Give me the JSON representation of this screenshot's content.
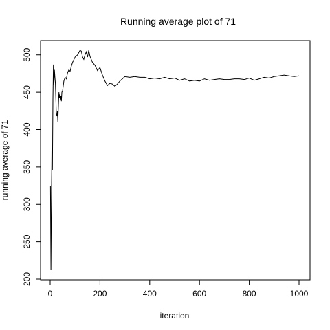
{
  "chart_data": {
    "type": "line",
    "title": "Running average plot of 71",
    "xlabel": "iteration",
    "ylabel": "running average of 71",
    "xlim": [
      0,
      1000
    ],
    "ylim": [
      200,
      520
    ],
    "x_ticks": [
      0,
      200,
      400,
      600,
      800,
      1000
    ],
    "y_ticks": [
      200,
      250,
      300,
      350,
      400,
      450,
      500
    ],
    "x_tick_labels": [
      "0",
      "200",
      "400",
      "600",
      "800",
      "1000"
    ],
    "y_tick_labels": [
      "200",
      "250",
      "300",
      "350",
      "400",
      "450",
      "500"
    ],
    "grid": false,
    "line_color": "#000000",
    "series": [
      {
        "x": [
          1,
          3,
          5,
          7,
          9,
          11,
          13,
          15,
          17,
          19,
          21,
          23,
          25,
          27,
          29,
          31,
          33,
          35,
          37,
          39,
          41,
          43,
          45,
          47,
          50,
          55,
          60,
          65,
          70,
          75,
          80,
          85,
          90,
          100,
          110,
          120,
          125,
          130,
          135,
          140,
          145,
          150,
          155,
          160,
          170,
          180,
          190,
          200,
          210,
          220,
          230,
          240,
          250,
          260,
          270,
          280,
          290,
          300,
          320,
          340,
          360,
          380,
          400,
          420,
          440,
          460,
          480,
          500,
          520,
          540,
          560,
          580,
          600,
          620,
          640,
          660,
          680,
          700,
          720,
          740,
          760,
          780,
          800,
          820,
          840,
          860,
          880,
          900,
          920,
          940,
          960,
          980,
          1000
        ],
        "values": [
          325,
          212,
          300,
          374,
          346,
          440,
          487,
          460,
          480,
          470,
          462,
          440,
          420,
          418,
          425,
          410,
          430,
          450,
          442,
          447,
          440,
          445,
          438,
          450,
          452,
          465,
          470,
          468,
          476,
          480,
          478,
          485,
          490,
          497,
          500,
          506,
          505,
          497,
          494,
          500,
          504,
          497,
          506,
          498,
          490,
          486,
          479,
          483,
          473,
          465,
          459,
          462,
          461,
          458,
          461,
          465,
          468,
          471,
          470,
          471,
          470,
          470,
          468,
          469,
          468,
          470,
          468,
          469,
          466,
          468,
          465,
          466,
          465,
          468,
          466,
          467,
          468,
          467,
          467,
          468,
          468,
          467,
          469,
          466,
          468,
          470,
          469,
          471,
          472,
          473,
          472,
          471,
          472
        ]
      }
    ]
  }
}
